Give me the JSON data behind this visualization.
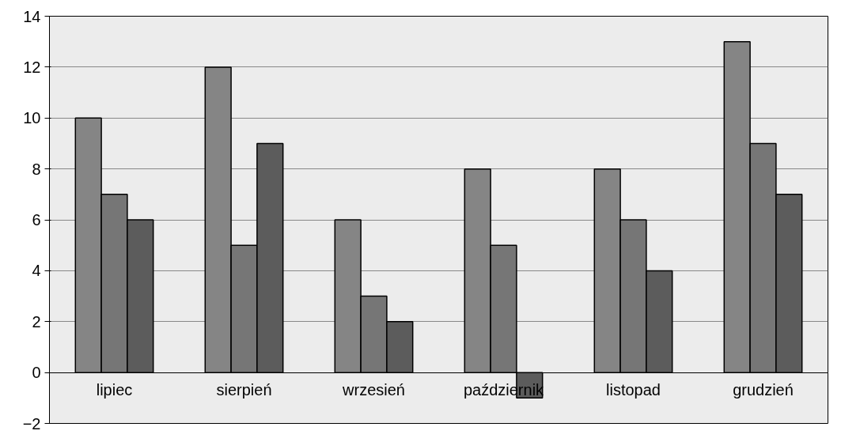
{
  "chart_data": {
    "type": "bar",
    "categories": [
      "lipiec",
      "sierpień",
      "wrzesień",
      "październik",
      "listopad",
      "grudzień"
    ],
    "series": [
      {
        "color": "#858585",
        "values": [
          10,
          12,
          6,
          8,
          8,
          13
        ]
      },
      {
        "color": "#767676",
        "values": [
          7,
          5,
          3,
          5,
          6,
          9
        ]
      },
      {
        "color": "#5c5c5c",
        "values": [
          6,
          9,
          2,
          -1,
          4,
          7
        ]
      }
    ],
    "ylim": [
      -2,
      14
    ],
    "yticks": [
      -2,
      0,
      2,
      4,
      6,
      8,
      10,
      12,
      14
    ],
    "grid": "y"
  }
}
